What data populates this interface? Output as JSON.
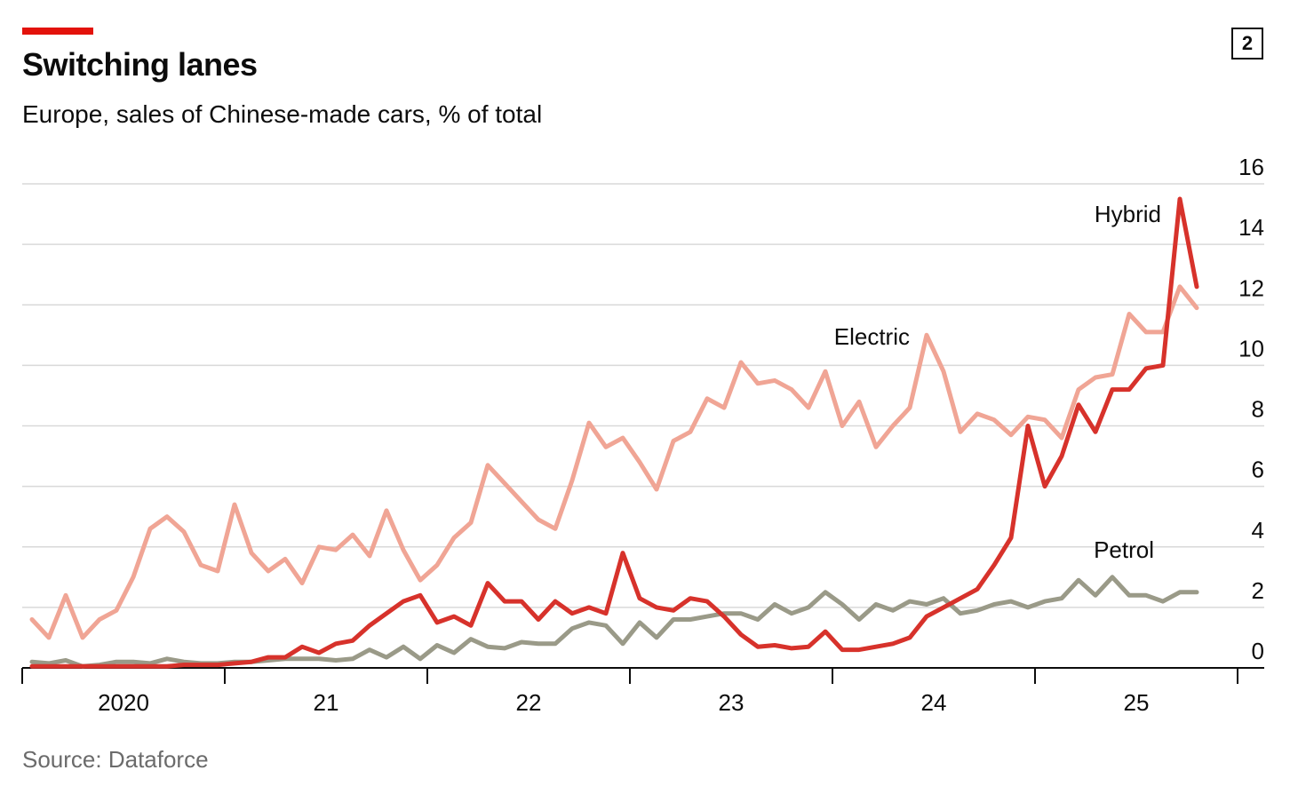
{
  "header": {
    "title": "Switching lanes",
    "subtitle": "Europe, sales of Chinese-made cars, % of total",
    "badge": "2"
  },
  "footer": {
    "source": "Source: Dataforce"
  },
  "colors": {
    "accent": "#e3120b",
    "electric": "#f0a595",
    "hybrid": "#d7322b",
    "petrol": "#9a9a88",
    "grid": "#d9d9d9",
    "axis": "#0c0c0c"
  },
  "chart_data": {
    "type": "line",
    "x_unit": "month",
    "x_start": "2019-12",
    "x_tick_labels": [
      "2020",
      "21",
      "22",
      "23",
      "24",
      "25"
    ],
    "ylim": [
      0,
      16
    ],
    "y_ticks": [
      0,
      2,
      4,
      6,
      8,
      10,
      12,
      14,
      16
    ],
    "grid": true,
    "y_axis_side": "right",
    "series": [
      {
        "name": "Electric",
        "color": "#f0a595",
        "label_position": "upper-middle",
        "values": [
          1.6,
          1.0,
          2.4,
          1.0,
          1.6,
          1.9,
          3.0,
          4.6,
          5.0,
          4.5,
          3.4,
          3.2,
          5.4,
          3.8,
          3.2,
          3.6,
          2.8,
          4.0,
          3.9,
          4.4,
          3.7,
          5.2,
          3.9,
          2.9,
          3.4,
          4.3,
          4.8,
          6.7,
          6.1,
          5.5,
          4.9,
          4.6,
          6.2,
          8.1,
          7.3,
          7.6,
          6.8,
          5.9,
          7.5,
          7.8,
          8.9,
          8.6,
          10.1,
          9.4,
          9.5,
          9.2,
          8.6,
          9.8,
          8.0,
          8.8,
          7.3,
          8.0,
          8.6,
          11.0,
          9.8,
          7.8,
          8.4,
          8.2,
          7.7,
          8.3,
          8.2,
          7.6,
          9.2,
          9.6,
          9.7,
          11.7,
          11.1,
          11.1,
          12.6,
          11.9
        ]
      },
      {
        "name": "Hybrid",
        "color": "#d7322b",
        "label_position": "top-right",
        "values": [
          0.05,
          0.05,
          0.05,
          0.05,
          0.05,
          0.05,
          0.05,
          0.05,
          0.05,
          0.1,
          0.1,
          0.1,
          0.15,
          0.2,
          0.35,
          0.35,
          0.7,
          0.5,
          0.8,
          0.9,
          1.4,
          1.8,
          2.2,
          2.4,
          1.5,
          1.7,
          1.4,
          2.8,
          2.2,
          2.2,
          1.6,
          2.2,
          1.8,
          2.0,
          1.8,
          3.8,
          2.3,
          2.0,
          1.9,
          2.3,
          2.2,
          1.7,
          1.1,
          0.7,
          0.75,
          0.65,
          0.7,
          1.2,
          0.6,
          0.6,
          0.7,
          0.8,
          1.0,
          1.7,
          2.0,
          2.3,
          2.6,
          3.4,
          4.3,
          8.0,
          6.0,
          7.0,
          8.7,
          7.8,
          9.2,
          9.2,
          9.9,
          10.0,
          15.5,
          12.6
        ]
      },
      {
        "name": "Petrol",
        "color": "#9a9a88",
        "label_position": "lower-right",
        "values": [
          0.2,
          0.15,
          0.25,
          0.05,
          0.1,
          0.2,
          0.2,
          0.15,
          0.3,
          0.2,
          0.15,
          0.15,
          0.2,
          0.2,
          0.25,
          0.3,
          0.3,
          0.3,
          0.25,
          0.3,
          0.6,
          0.35,
          0.7,
          0.3,
          0.75,
          0.5,
          0.95,
          0.7,
          0.65,
          0.85,
          0.8,
          0.8,
          1.3,
          1.5,
          1.4,
          0.8,
          1.5,
          1.0,
          1.6,
          1.6,
          1.7,
          1.8,
          1.8,
          1.6,
          2.1,
          1.8,
          2.0,
          2.5,
          2.1,
          1.6,
          2.1,
          1.9,
          2.2,
          2.1,
          2.3,
          1.8,
          1.9,
          2.1,
          2.2,
          2.0,
          2.2,
          2.3,
          2.9,
          2.4,
          3.0,
          2.4,
          2.4,
          2.2,
          2.5,
          2.5
        ]
      }
    ]
  }
}
